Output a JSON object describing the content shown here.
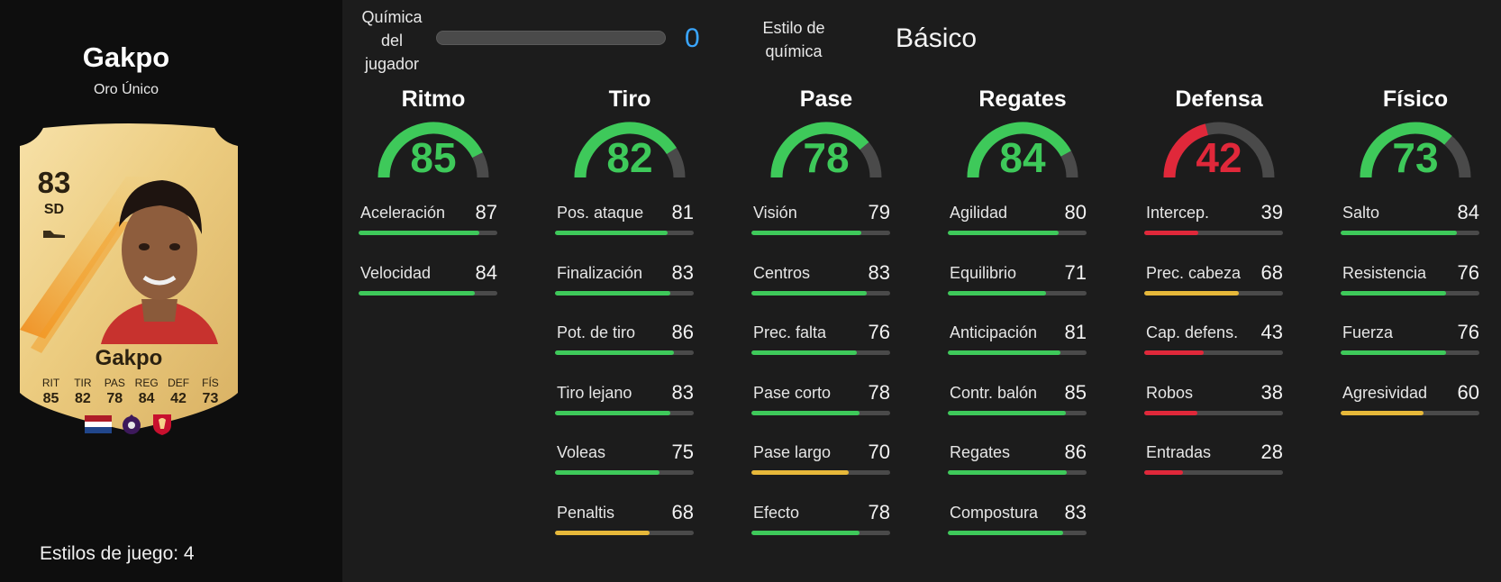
{
  "player": {
    "name": "Gakpo",
    "rarity": "Oro Único",
    "playstyles_label": "Estilos de juego: 4"
  },
  "card": {
    "rating": "83",
    "position": "SD",
    "name": "Gakpo",
    "stats": [
      {
        "label": "RIT",
        "value": "85"
      },
      {
        "label": "TIR",
        "value": "82"
      },
      {
        "label": "PAS",
        "value": "78"
      },
      {
        "label": "REG",
        "value": "84"
      },
      {
        "label": "DEF",
        "value": "42"
      },
      {
        "label": "FÍS",
        "value": "73"
      }
    ],
    "badge_icons": [
      "netherlands-flag-icon",
      "premier-league-icon",
      "liverpool-crest-icon"
    ]
  },
  "chemistry": {
    "label": "Química del jugador",
    "value": "0",
    "fraction": 0,
    "style_label": "Estilo de química",
    "style_value": "Básico"
  },
  "colors": {
    "green": "#3ec95a",
    "yellow": "#e6b83a",
    "red": "#e0283a",
    "track": "#4a4a4a",
    "accent_blue": "#3aa6ff"
  },
  "categories": [
    {
      "title": "Ritmo",
      "value": "85",
      "color": "green",
      "attrs": [
        {
          "name": "Aceleración",
          "value": "87",
          "color": "green"
        },
        {
          "name": "Velocidad",
          "value": "84",
          "color": "green"
        }
      ]
    },
    {
      "title": "Tiro",
      "value": "82",
      "color": "green",
      "attrs": [
        {
          "name": "Pos. ataque",
          "value": "81",
          "color": "green"
        },
        {
          "name": "Finalización",
          "value": "83",
          "color": "green"
        },
        {
          "name": "Pot. de tiro",
          "value": "86",
          "color": "green"
        },
        {
          "name": "Tiro lejano",
          "value": "83",
          "color": "green"
        },
        {
          "name": "Voleas",
          "value": "75",
          "color": "green"
        },
        {
          "name": "Penaltis",
          "value": "68",
          "color": "yellow"
        }
      ]
    },
    {
      "title": "Pase",
      "value": "78",
      "color": "green",
      "attrs": [
        {
          "name": "Visión",
          "value": "79",
          "color": "green"
        },
        {
          "name": "Centros",
          "value": "83",
          "color": "green"
        },
        {
          "name": "Prec. falta",
          "value": "76",
          "color": "green"
        },
        {
          "name": "Pase corto",
          "value": "78",
          "color": "green"
        },
        {
          "name": "Pase largo",
          "value": "70",
          "color": "yellow"
        },
        {
          "name": "Efecto",
          "value": "78",
          "color": "green"
        }
      ]
    },
    {
      "title": "Regates",
      "value": "84",
      "color": "green",
      "attrs": [
        {
          "name": "Agilidad",
          "value": "80",
          "color": "green"
        },
        {
          "name": "Equilibrio",
          "value": "71",
          "color": "green"
        },
        {
          "name": "Anticipación",
          "value": "81",
          "color": "green"
        },
        {
          "name": "Contr. balón",
          "value": "85",
          "color": "green"
        },
        {
          "name": "Regates",
          "value": "86",
          "color": "green"
        },
        {
          "name": "Compostura",
          "value": "83",
          "color": "green"
        }
      ]
    },
    {
      "title": "Defensa",
      "value": "42",
      "color": "red",
      "attrs": [
        {
          "name": "Intercep.",
          "value": "39",
          "color": "red"
        },
        {
          "name": "Prec. cabeza",
          "value": "68",
          "color": "yellow"
        },
        {
          "name": "Cap. defens.",
          "value": "43",
          "color": "red"
        },
        {
          "name": "Robos",
          "value": "38",
          "color": "red"
        },
        {
          "name": "Entradas",
          "value": "28",
          "color": "red"
        }
      ]
    },
    {
      "title": "Físico",
      "value": "73",
      "color": "green",
      "attrs": [
        {
          "name": "Salto",
          "value": "84",
          "color": "green"
        },
        {
          "name": "Resistencia",
          "value": "76",
          "color": "green"
        },
        {
          "name": "Fuerza",
          "value": "76",
          "color": "green"
        },
        {
          "name": "Agresividad",
          "value": "60",
          "color": "yellow"
        }
      ]
    }
  ]
}
